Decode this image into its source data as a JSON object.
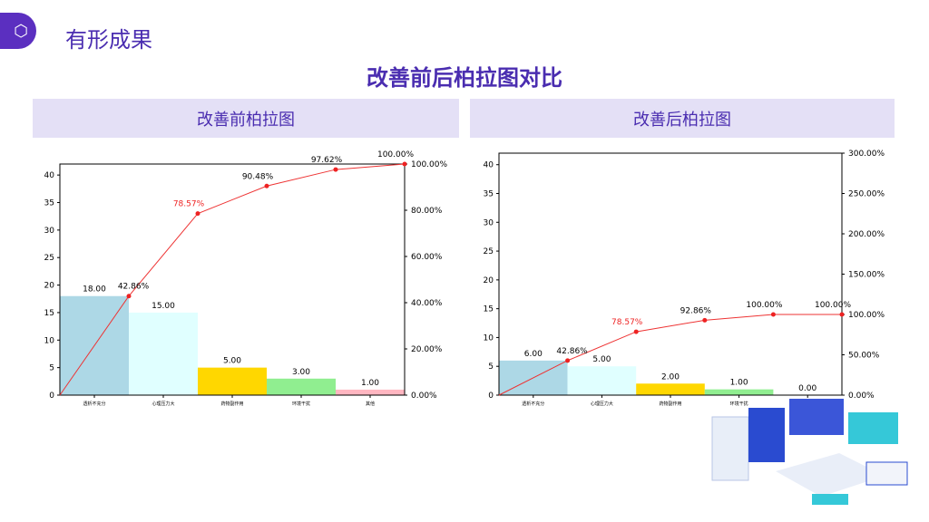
{
  "header": {
    "title": "有形成果",
    "icon": "hexagon-logo-icon"
  },
  "subtitle": "改善前后柏拉图对比",
  "panels": [
    {
      "label": "改善前柏拉图"
    },
    {
      "label": "改善后柏拉图"
    }
  ],
  "chart_data": [
    {
      "type": "bar",
      "title": "改善前柏拉图",
      "categories": [
        "透析不充分",
        "心理压力大",
        "药物副作用",
        "环境干扰",
        "其他"
      ],
      "values": [
        18,
        15,
        5,
        3,
        1
      ],
      "value_labels": [
        "18.00",
        "15.00",
        "5.00",
        "3.00",
        "1.00"
      ],
      "colors": [
        "#add8e6",
        "#e0ffff",
        "#ffd700",
        "#90ee90",
        "#ffb6c1"
      ],
      "cumulative": [
        42.86,
        78.57,
        90.48,
        97.62,
        100.0
      ],
      "cumulative_labels": [
        "42.86%",
        "78.57%",
        "90.48%",
        "97.62%",
        "100.00%"
      ],
      "ylim": [
        0,
        42
      ],
      "yticks": [
        "0",
        "5",
        "10",
        "15",
        "20",
        "25",
        "30",
        "35",
        "40"
      ],
      "y2lim": [
        0,
        100
      ],
      "y2ticks": [
        "0.00%",
        "20.00%",
        "40.00%",
        "60.00%",
        "80.00%",
        "100.00%"
      ]
    },
    {
      "type": "bar",
      "title": "改善后柏拉图",
      "categories": [
        "透析不充分",
        "心理压力大",
        "药物副作用",
        "环境干扰",
        "其他"
      ],
      "values": [
        6,
        5,
        2,
        1,
        0
      ],
      "value_labels": [
        "6.00",
        "5.00",
        "2.00",
        "1.00",
        "0.00"
      ],
      "colors": [
        "#add8e6",
        "#e0ffff",
        "#ffd700",
        "#90ee90",
        "#ffb6c1"
      ],
      "cumulative": [
        42.86,
        78.57,
        92.86,
        100.0,
        100.0
      ],
      "cumulative_labels": [
        "42.86%",
        "78.57%",
        "92.86%",
        "100.00%",
        "100.00%"
      ],
      "ylim": [
        0,
        42
      ],
      "yticks": [
        "0",
        "5",
        "10",
        "15",
        "20",
        "25",
        "30",
        "35",
        "40"
      ],
      "y2lim": [
        0,
        300
      ],
      "y2ticks": [
        "0.00%",
        "50.00%",
        "100.00%",
        "150.00%",
        "200.00%",
        "250.00%",
        "300.00%"
      ]
    }
  ]
}
